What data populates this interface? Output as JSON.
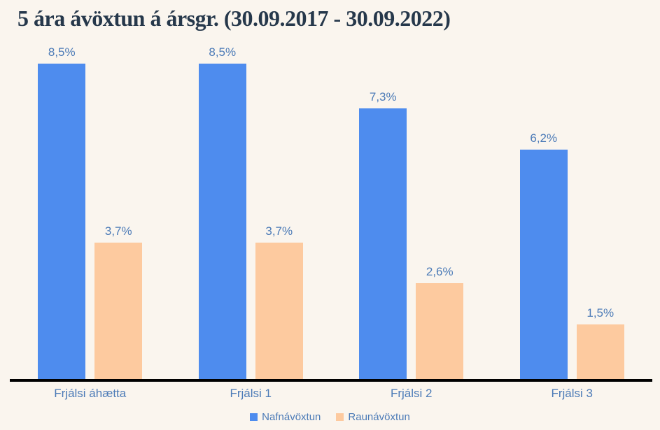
{
  "header": {
    "title": "5 ára ávöxtun á ársgr. (30.09.2017 - 30.09.2022)"
  },
  "colors": {
    "background": "#faf5ee",
    "title_text": "#26384b",
    "label_text": "#4c7bb7",
    "axis_line": "#000000",
    "series_blue": "#4e8cee",
    "series_peach": "#fdca9f"
  },
  "legend": {
    "items": [
      {
        "label": "Nafnávöxtun",
        "color": "#4e8cee"
      },
      {
        "label": "Raunávöxtun",
        "color": "#fdca9f"
      }
    ]
  },
  "chart_data": {
    "type": "bar",
    "title": "5 ára ávöxtun á ársgr. (30.09.2017 - 30.09.2022)",
    "categories": [
      "Frjálsi áhætta",
      "Frjálsi 1",
      "Frjálsi 2",
      "Frjálsi 3"
    ],
    "series": [
      {
        "name": "Nafnávöxtun",
        "color": "#4e8cee",
        "values": [
          8.5,
          8.5,
          7.3,
          6.2
        ],
        "labels": [
          "8,5%",
          "8,5%",
          "7,3%",
          "6,2%"
        ]
      },
      {
        "name": "Raunávöxtun",
        "color": "#fdca9f",
        "values": [
          3.7,
          3.7,
          2.6,
          1.5
        ],
        "labels": [
          "3,7%",
          "3,7%",
          "2,6%",
          "1,5%"
        ]
      }
    ],
    "xlabel": "",
    "ylabel": "",
    "ylim": [
      0,
      8.5
    ],
    "grid": false,
    "data_labels": true,
    "legend_position": "bottom-center",
    "value_format": "percent-comma-decimal"
  }
}
